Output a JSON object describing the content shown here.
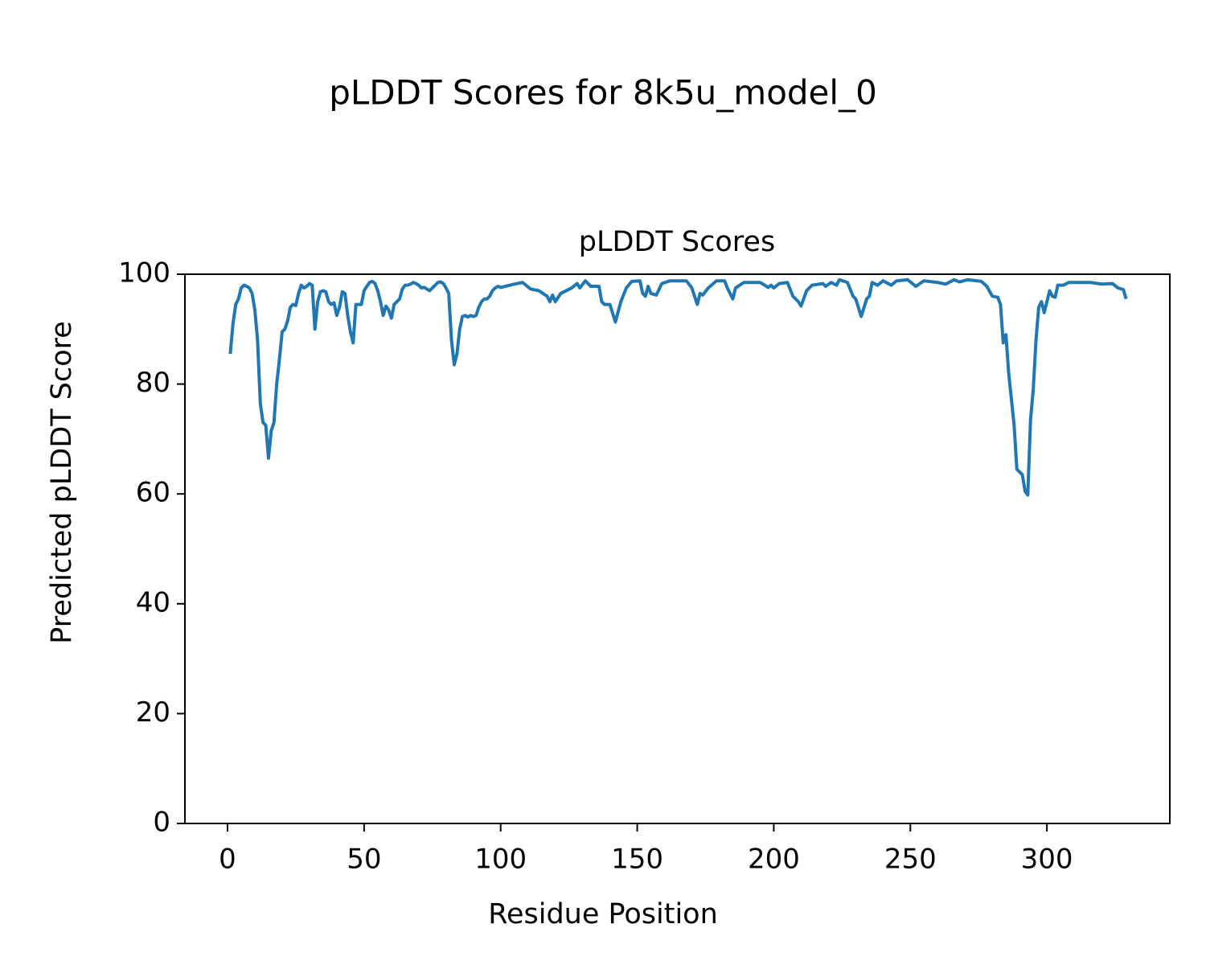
{
  "chart_data": {
    "type": "line",
    "title": "pLDDT Scores for 8k5u_model_0",
    "subtitle": "pLDDT Scores",
    "xlabel": "Residue Position",
    "ylabel": "Predicted pLDDT Score",
    "color": "#1f77b4",
    "xlim": [
      -15.6,
      345
    ],
    "ylim": [
      0,
      100
    ],
    "xticks": [
      0,
      50,
      100,
      150,
      200,
      250,
      300
    ],
    "yticks": [
      0,
      20,
      40,
      60,
      80,
      100
    ],
    "grid": false,
    "x": [
      1,
      2,
      3,
      4,
      5,
      6,
      7,
      8,
      9,
      10,
      11,
      12,
      13,
      14,
      15,
      16,
      17,
      18,
      19,
      20,
      21,
      22,
      23,
      24,
      25,
      26,
      27,
      28,
      29,
      30,
      31,
      32,
      33,
      34,
      35,
      36,
      37,
      38,
      39,
      40,
      41,
      42,
      43,
      44,
      45,
      46,
      47,
      48,
      49,
      50,
      51,
      52,
      53,
      54,
      55,
      56,
      57,
      58,
      59,
      60,
      61,
      62,
      63,
      64,
      65,
      66,
      67,
      68,
      69,
      70,
      71,
      72,
      73,
      74,
      75,
      76,
      77,
      78,
      79,
      80,
      81,
      82,
      83,
      84,
      85,
      86,
      87,
      88,
      89,
      90,
      91,
      92,
      93,
      94,
      95,
      96,
      97,
      98,
      99,
      100,
      105,
      108,
      111,
      114,
      117,
      118,
      119,
      120,
      122,
      126,
      128,
      129,
      131,
      133,
      136,
      137,
      138,
      140,
      142,
      144,
      146,
      148,
      151,
      152,
      153,
      154,
      155,
      157,
      159,
      162,
      168,
      170,
      172,
      173,
      174,
      176,
      179,
      182,
      183,
      185,
      186,
      189,
      195,
      198,
      199,
      200,
      202,
      205,
      207,
      209,
      210,
      212,
      214,
      218,
      219,
      221,
      223,
      224,
      227,
      229,
      230,
      232,
      234,
      235,
      236,
      238,
      240,
      243,
      245,
      249,
      252,
      255,
      260,
      263,
      266,
      268,
      271,
      276,
      278,
      280,
      282,
      283,
      284,
      285,
      286,
      288,
      289,
      290,
      291,
      292,
      293,
      294,
      295,
      296,
      297,
      298,
      299,
      300,
      301,
      302,
      303,
      304,
      306,
      308,
      312,
      316,
      320,
      324,
      326,
      328,
      329
    ],
    "values": [
      85.5,
      91,
      94.5,
      95.5,
      97.5,
      98,
      97.8,
      97.5,
      96.5,
      93.5,
      88,
      76.5,
      73,
      72.5,
      66.5,
      71.5,
      73,
      80,
      84.5,
      89.5,
      90,
      91.5,
      94,
      94.5,
      94.3,
      96.5,
      98,
      97.5,
      97.8,
      98.3,
      98,
      90,
      95,
      96.8,
      97,
      96.8,
      95,
      94.5,
      94.8,
      92.5,
      94,
      96.8,
      96.5,
      92.5,
      89.5,
      87.5,
      94.5,
      94.5,
      94.5,
      97,
      97.8,
      98.5,
      98.7,
      98.3,
      97,
      95,
      92.5,
      94.2,
      93.5,
      92,
      94.5,
      95,
      95.5,
      97.3,
      98,
      98,
      98.2,
      98.5,
      98.3,
      98,
      97.5,
      97.6,
      97.3,
      97,
      97.5,
      98,
      98.5,
      98.6,
      98.3,
      97.5,
      96.5,
      88,
      83.5,
      85.5,
      90,
      92.3,
      92.5,
      92.2,
      92.5,
      92.3,
      92.5,
      94,
      95,
      95.5,
      95.5,
      96,
      97,
      97.5,
      97.8,
      97.6,
      98.2,
      98.5,
      97.3,
      97,
      96,
      95,
      96.2,
      95,
      96.5,
      97.5,
      98.3,
      97.5,
      98.8,
      97.8,
      97.8,
      95,
      94.5,
      94.5,
      91.3,
      95,
      97.5,
      98.7,
      98.8,
      96.5,
      96,
      97.8,
      96.5,
      96.2,
      98.3,
      98.8,
      98.8,
      97.5,
      94.5,
      96.5,
      96.2,
      97.5,
      98.8,
      98.8,
      97.5,
      95.5,
      97.5,
      98.5,
      98.5,
      97.6,
      98,
      97.5,
      98.3,
      98.5,
      96,
      95,
      94.2,
      97,
      98,
      98.3,
      97.8,
      98.5,
      98,
      99,
      98.5,
      96,
      95.5,
      92.3,
      95.5,
      96,
      98.5,
      98,
      98.8,
      98,
      98.8,
      99,
      97.8,
      98.8,
      98.5,
      98.2,
      99,
      98.6,
      99,
      98.7,
      97.8,
      96,
      95.8,
      94.5,
      87.5,
      89,
      82,
      72.5,
      64.5,
      64,
      63.5,
      60.5,
      59.8,
      73.5,
      79,
      88,
      94,
      95,
      93,
      95,
      97,
      96,
      95.8,
      98,
      98,
      98.5,
      98.5,
      98.5,
      98.2,
      98.3,
      97.5,
      97.2,
      95.5
    ]
  }
}
